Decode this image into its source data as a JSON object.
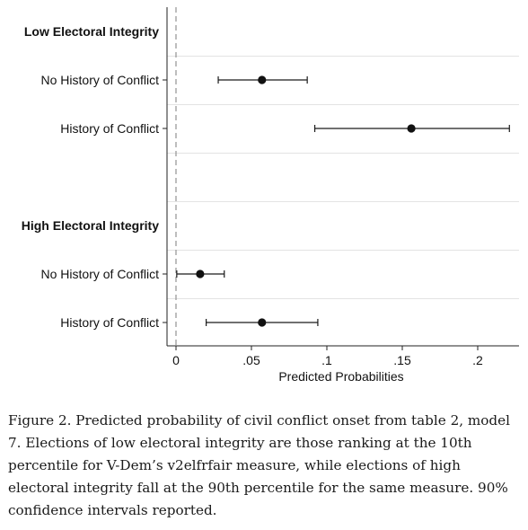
{
  "chart_data": {
    "type": "scatter",
    "subtype": "coefficient-plot",
    "title": "",
    "xlabel": "Predicted Probabilities",
    "ylabel": "",
    "xlim": [
      -0.01,
      0.23
    ],
    "x_ticks": [
      0,
      0.05,
      0.1,
      0.15,
      0.2
    ],
    "x_tick_labels": [
      "0",
      ".05",
      ".1",
      ".15",
      ".2"
    ],
    "reference_line": {
      "x": 0,
      "style": "dashed"
    },
    "grid": "horizontal",
    "groups": [
      {
        "label": "Low Electoral Integrity",
        "rows": [
          {
            "label": "No History of Conflict",
            "estimate": 0.057,
            "ci": [
              0.028,
              0.087
            ]
          },
          {
            "label": "History of Conflict",
            "estimate": 0.156,
            "ci": [
              0.092,
              0.221
            ]
          }
        ]
      },
      {
        "label": "High Electoral Integrity",
        "rows": [
          {
            "label": "No History of Conflict",
            "estimate": 0.016,
            "ci": [
              0.0005,
              0.032
            ]
          },
          {
            "label": "History of Conflict",
            "estimate": 0.057,
            "ci": [
              0.02,
              0.094
            ]
          }
        ]
      }
    ]
  },
  "caption": "Figure 2. Predicted probability of civil conflict onset from table 2, model 7. Elections of low electoral integrity are those ranking at the 10th percentile for V-Dem’s v2elfrfair measure, while elections of high electoral integrity fall at the 90th percentile for the same measure. 90% confidence intervals reported."
}
